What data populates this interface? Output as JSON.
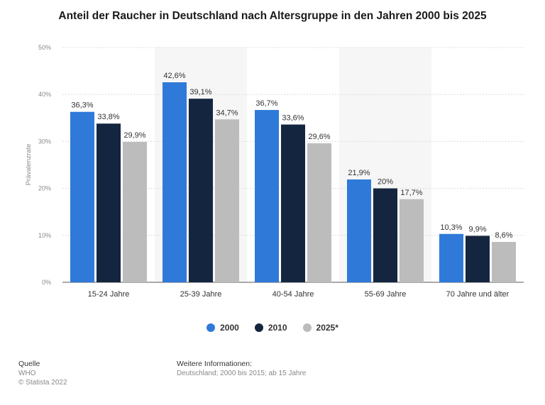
{
  "title": "Anteil der Raucher in Deutschland nach Altersgruppe in den Jahren 2000 bis 2025",
  "chart_data": {
    "type": "bar",
    "title": "Anteil der Raucher in Deutschland nach Altersgruppe in den Jahren 2000 bis 2025",
    "xlabel": "",
    "ylabel": "Prävalenzrate",
    "ylim": [
      0,
      50
    ],
    "yticks": [
      "0%",
      "10%",
      "20%",
      "30%",
      "40%",
      "50%"
    ],
    "categories": [
      "15-24 Jahre",
      "25-39 Jahre",
      "40-54 Jahre",
      "55-69 Jahre",
      "70 Jahre und älter"
    ],
    "series": [
      {
        "name": "2000",
        "color": "#2f7ad8",
        "values": [
          36.3,
          42.6,
          36.7,
          21.9,
          10.3
        ],
        "labels": [
          "36,3%",
          "42,6%",
          "36,7%",
          "21,9%",
          "10,3%"
        ]
      },
      {
        "name": "2010",
        "color": "#14263f",
        "values": [
          33.8,
          39.1,
          33.6,
          20.0,
          9.9
        ],
        "labels": [
          "33,8%",
          "39,1%",
          "33,6%",
          "20%",
          "9,9%"
        ]
      },
      {
        "name": "2025*",
        "color": "#bcbcbc",
        "values": [
          29.9,
          34.7,
          29.6,
          17.7,
          8.6
        ],
        "labels": [
          "29,9%",
          "34,7%",
          "29,6%",
          "17,7%",
          "8,6%"
        ]
      }
    ],
    "grid": true,
    "legend_position": "bottom-center"
  },
  "footer": {
    "source_heading": "Quelle",
    "source_value": "WHO",
    "copyright": "© Statista 2022",
    "info_heading": "Weitere Informationen:",
    "info_value": "Deutschland; 2000 bis 2015; ab 15 Jahre"
  }
}
